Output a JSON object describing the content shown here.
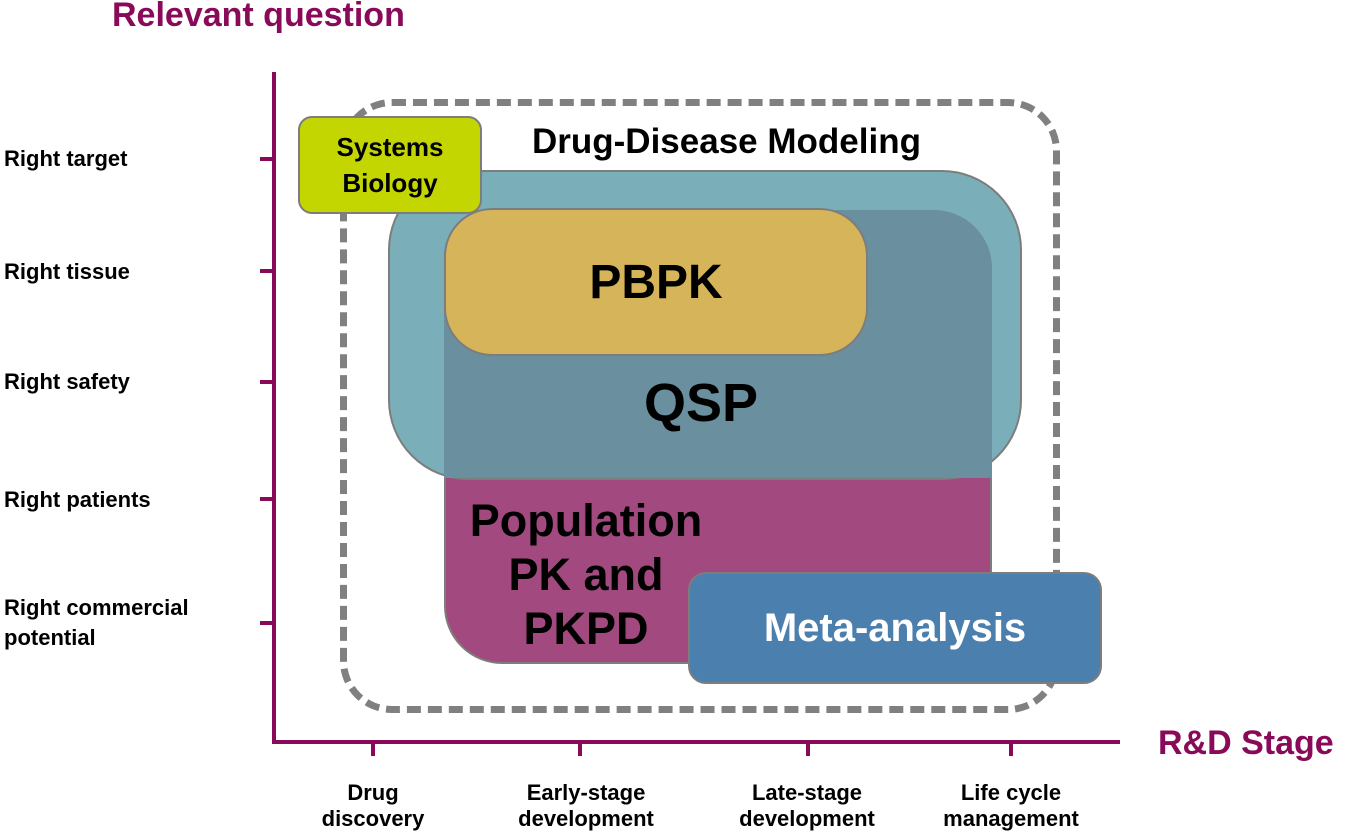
{
  "axes": {
    "y_title": "Relevant question",
    "x_title": "R&D Stage",
    "y_labels": [
      {
        "line1": "Right target",
        "line2": ""
      },
      {
        "line1": "Right tissue",
        "line2": ""
      },
      {
        "line1": "Right safety",
        "line2": ""
      },
      {
        "line1": "Right patients",
        "line2": ""
      },
      {
        "line1": "Right commercial",
        "line2": "potential"
      }
    ],
    "x_labels": [
      {
        "line1": "Drug",
        "line2": "discovery"
      },
      {
        "line1": "Early-stage",
        "line2": "development"
      },
      {
        "line1": "Late-stage",
        "line2": "development"
      },
      {
        "line1": "Life cycle",
        "line2": "management"
      }
    ]
  },
  "regions": {
    "drug_disease_modeling": "Drug-Disease Modeling",
    "systems_biology": {
      "line1": "Systems",
      "line2": "Biology"
    },
    "pbpk": "PBPK",
    "qsp": "QSP",
    "population": {
      "line1": "Population",
      "line2": "PK and",
      "line3": "PKPD"
    },
    "meta_analysis": "Meta-analysis"
  },
  "colors": {
    "axis": "#8a0a5a",
    "systems_biology": "#c4d601",
    "qsp": "#7aafba",
    "pbpk": "#d6b45a",
    "population": "#a24a7f",
    "meta_analysis": "#4a7fae",
    "dashed_border": "#808080"
  }
}
